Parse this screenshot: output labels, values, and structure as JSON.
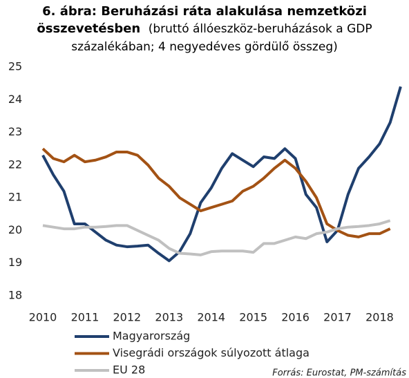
{
  "chart_data": {
    "type": "line",
    "title": "6. ábra: Beruházási ráta alakulása nemzetközi összevetésben",
    "subtitle": "(bruttó állóeszköz-beruházások a GDP százalékában; 4 negyedéves gördülő összeg)",
    "annotation": "Forrás: Eurostat, PM-számítás",
    "x": [
      2010,
      2010.25,
      2010.5,
      2010.75,
      2011,
      2011.25,
      2011.5,
      2011.75,
      2012,
      2012.25,
      2012.5,
      2012.75,
      2013,
      2013.25,
      2013.5,
      2013.75,
      2014,
      2014.25,
      2014.5,
      2014.75,
      2015,
      2015.25,
      2015.5,
      2015.75,
      2016,
      2016.25,
      2016.5,
      2016.75,
      2017,
      2017.25,
      2017.5,
      2017.75,
      2018,
      2018.25,
      2018.5
    ],
    "series": [
      {
        "name": "Magyarország",
        "color": "#1f3f6e",
        "values": [
          22.3,
          21.7,
          21.2,
          20.2,
          20.2,
          19.95,
          19.7,
          19.55,
          19.5,
          19.52,
          19.55,
          19.3,
          19.07,
          19.35,
          19.9,
          20.85,
          21.3,
          21.9,
          22.35,
          22.15,
          21.95,
          22.25,
          22.2,
          22.5,
          22.2,
          21.1,
          20.7,
          19.65,
          20.0,
          21.1,
          21.9,
          22.25,
          22.65,
          23.3,
          24.4
        ]
      },
      {
        "name": "Visegrádi országok  súlyozott átlaga",
        "color": "#a35214",
        "values": [
          22.5,
          22.2,
          22.1,
          22.3,
          22.1,
          22.15,
          22.25,
          22.4,
          22.4,
          22.3,
          22.0,
          21.6,
          21.35,
          21.0,
          20.8,
          20.6,
          20.7,
          20.8,
          20.9,
          21.2,
          21.35,
          21.6,
          21.9,
          22.15,
          21.9,
          21.5,
          21.0,
          20.2,
          20.0,
          19.85,
          19.8,
          19.9,
          19.9,
          20.05,
          null
        ]
      },
      {
        "name": "EU 28",
        "color": "#c0c0c0",
        "values": [
          20.15,
          20.1,
          20.05,
          20.05,
          20.1,
          20.1,
          20.12,
          20.15,
          20.15,
          20.0,
          19.85,
          19.7,
          19.45,
          19.3,
          19.28,
          19.25,
          19.35,
          19.37,
          19.37,
          19.37,
          19.33,
          19.6,
          19.6,
          19.7,
          19.8,
          19.75,
          19.9,
          19.95,
          20.05,
          20.1,
          20.12,
          20.15,
          20.2,
          20.3,
          null
        ]
      }
    ],
    "xlim": [
      2010,
      2018.6
    ],
    "xticks": [
      2010,
      2011,
      2012,
      2013,
      2014,
      2015,
      2016,
      2017,
      2018
    ],
    "ylim": [
      18,
      25
    ],
    "yticks": [
      18,
      19,
      20,
      21,
      22,
      23,
      24,
      25
    ]
  }
}
